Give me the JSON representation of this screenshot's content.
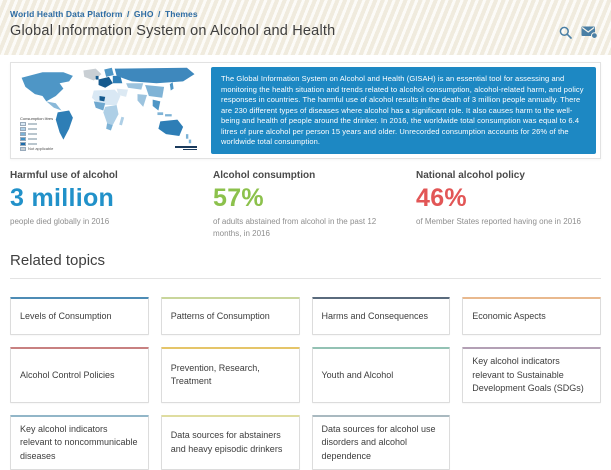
{
  "header": {
    "breadcrumb": {
      "items": [
        "World Health Data Platform",
        "GHO",
        "Themes"
      ],
      "separator": "/"
    },
    "title": "Global Information System on Alcohol and Health",
    "icons": {
      "search": "search-icon",
      "mail": "mail-envelope-icon"
    },
    "icon_color": "#4a7fa5"
  },
  "hero": {
    "description": "The Global Information System on Alcohol and Health (GISAH) is an essential tool for assessing and monitoring the health situation and trends related to alcohol consumption, alcohol-related harm, and policy responses in countries. The harmful use of alcohol results in the death of 3 million people annually. There are 230 different types of diseases where alcohol has a significant role. It also causes harm to the well-being and health of people around the drinker. In 2016, the worldwide total consumption was equal to 6.4 litres of pure alcohol per person 15 years and older. Unrecorded consumption accounts for 26% of the worldwide total consumption.",
    "description_bg": "#1d88c3",
    "map": {
      "legend_title": "Consumption litres",
      "na_label": "Not applicable",
      "shades": [
        "#d9e8f4",
        "#aecfe6",
        "#7cb2d6",
        "#4292c6",
        "#1c6cab"
      ],
      "no_data_color": "#c9cfd4"
    }
  },
  "stats": [
    {
      "label": "Harmful use of alcohol",
      "value": "3 million",
      "caption": "people died globally in 2016",
      "color": "#2191c9"
    },
    {
      "label": "Alcohol consumption",
      "value": "57%",
      "caption": "of adults abstained from alcohol in the past 12 months, in 2016",
      "color": "#8cc14c"
    },
    {
      "label": "National alcohol policy",
      "value": "46%",
      "caption": "of Member States reported having one in 2016",
      "color": "#e25656"
    }
  ],
  "related_topics": {
    "heading": "Related topics",
    "tiles": [
      {
        "label": "Levels of Consumption",
        "accent": "#4d8cb5"
      },
      {
        "label": "Patterns of Consumption",
        "accent": "#c9d69b"
      },
      {
        "label": "Harms and Consequences",
        "accent": "#5a6b7d"
      },
      {
        "label": "Economic Aspects",
        "accent": "#e9b98e"
      },
      {
        "label": "Alcohol Control Policies",
        "accent": "#c88181"
      },
      {
        "label": "Prevention, Research, Treatment",
        "accent": "#e5c569"
      },
      {
        "label": "Youth and Alcohol",
        "accent": "#93c2b4"
      },
      {
        "label": "Key alcohol indicators relevant to Sustainable Development Goals (SDGs)",
        "accent": "#b3a0b5"
      },
      {
        "label": "Key alcohol indicators relevant to noncommunicable diseases",
        "accent": "#92b6c8"
      },
      {
        "label": "Data sources for abstainers and heavy episodic drinkers",
        "accent": "#dfdda0"
      },
      {
        "label": "Data sources for alcohol use disorders and alcohol dependence",
        "accent": "#a9b9c0"
      }
    ]
  }
}
